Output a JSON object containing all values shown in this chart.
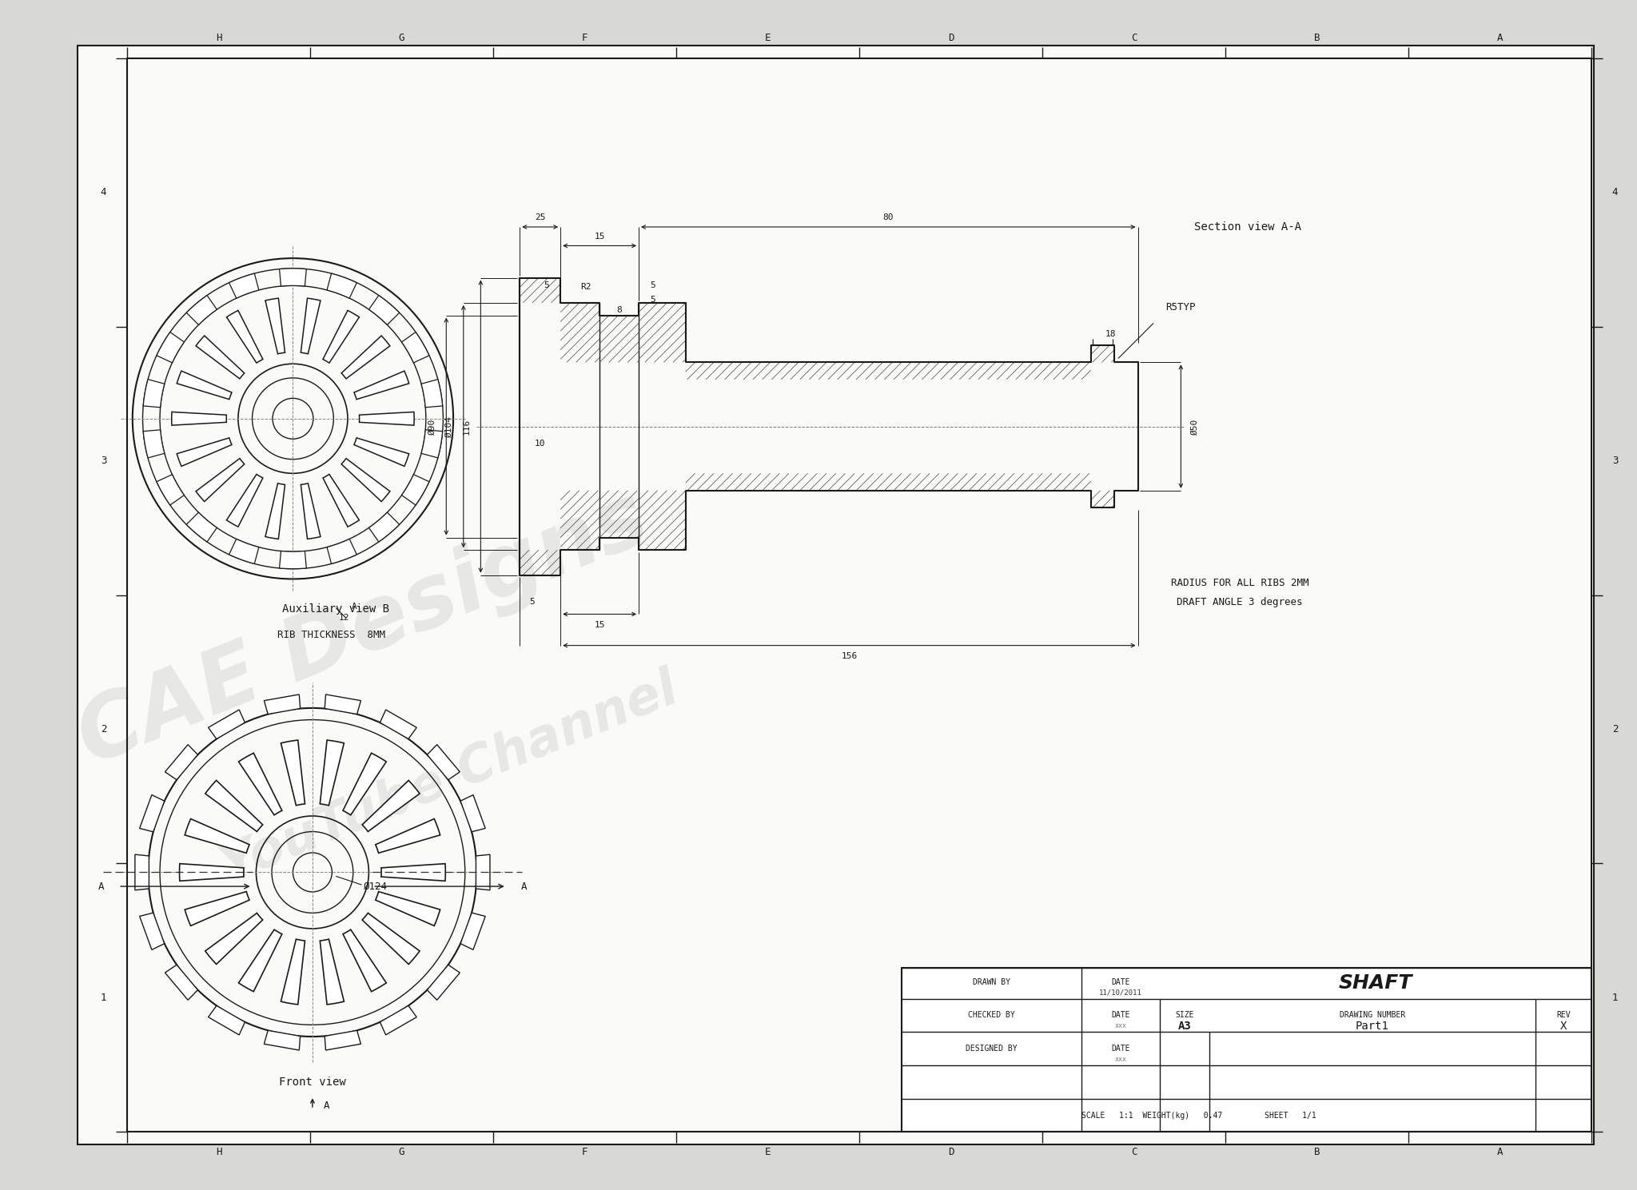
{
  "bg_color": "#d8d8d4",
  "paper_color": "#fafaf8",
  "line_color": "#1a1a1a",
  "dim_color": "#1a1a1a",
  "hatch_color": "#444444",
  "wm_color": "#d0d0cc",
  "title": "SHAFT",
  "part_number": "Part1",
  "size": "A3",
  "scale": "1:1",
  "weight": "0.47",
  "sheet": "1/1",
  "drawn_by": "DRAWN BY",
  "checked_by": "CHECKED BY",
  "designed_by": "DESIGNED BY",
  "date": "11/10/2011",
  "rev": "X",
  "section_view_label": "Section view A-A",
  "aux_view_label": "Auxiliary view B",
  "front_view_label": "Front view",
  "rib_thickness": "RIB THICKNESS  8MM",
  "radius_note_1": "RADIUS FOR ALL RIBS 2MM",
  "radius_note_2": "DRAFT ANGLE 3 degrees",
  "wm_1": "CAE Designs",
  "wm_2": "YouTube Channel",
  "border_letters": [
    "H",
    "G",
    "F",
    "E",
    "D",
    "C",
    "B",
    "A"
  ],
  "border_numbers": [
    "1",
    "2",
    "3",
    "4"
  ],
  "n_front_teeth": 18,
  "n_front_ribs": 18,
  "n_aux_ribs": 18,
  "n_aux_slots": 18
}
